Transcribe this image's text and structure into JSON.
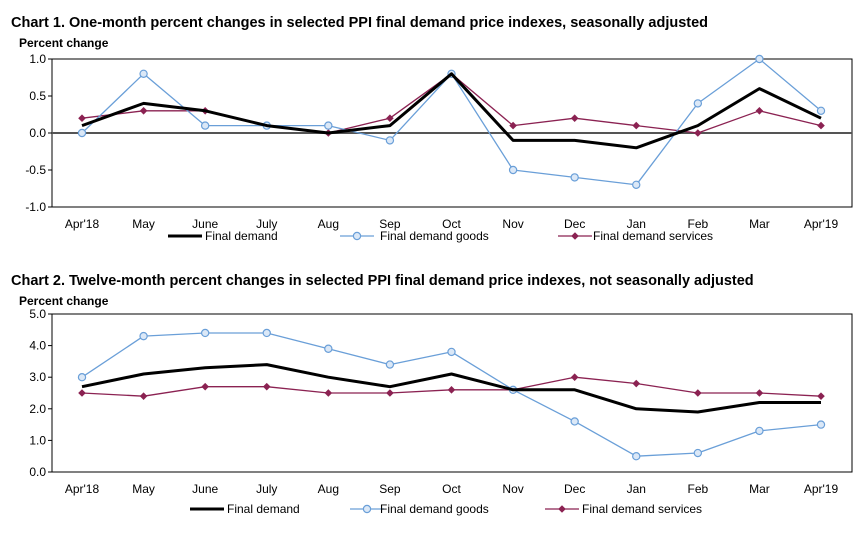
{
  "chart_data": [
    {
      "type": "line",
      "title": "Chart 1. One-month percent changes in selected PPI final demand price indexes, seasonally adjusted",
      "ylabel": "Percent change",
      "ylim": [
        -1.0,
        1.0
      ],
      "yticks": [
        "1.0",
        "0.5",
        "0.0",
        "-0.5",
        "-1.0"
      ],
      "ytick_values": [
        1.0,
        0.5,
        0.0,
        -0.5,
        -1.0
      ],
      "grid": false,
      "zero_line": true,
      "legend_position": "bottom",
      "categories": [
        "Apr'18",
        "May",
        "June",
        "July",
        "Aug",
        "Sep",
        "Oct",
        "Nov",
        "Dec",
        "Jan",
        "Feb",
        "Mar",
        "Apr'19"
      ],
      "series": [
        {
          "name": "Final demand",
          "color": "#000000",
          "marker": "none",
          "values": [
            0.1,
            0.4,
            0.3,
            0.1,
            0.0,
            0.1,
            0.8,
            -0.1,
            -0.1,
            -0.2,
            0.1,
            0.6,
            0.2
          ]
        },
        {
          "name": "Final demand goods",
          "color": "#6a9fd8",
          "marker": "circle",
          "values": [
            0.0,
            0.8,
            0.1,
            0.1,
            0.1,
            -0.1,
            0.8,
            -0.5,
            -0.6,
            -0.7,
            0.4,
            1.0,
            0.3
          ]
        },
        {
          "name": "Final demand services",
          "color": "#8b2252",
          "marker": "diamond",
          "values": [
            0.2,
            0.3,
            0.3,
            0.1,
            0.0,
            0.2,
            0.8,
            0.1,
            0.2,
            0.1,
            0.0,
            0.3,
            0.1
          ]
        }
      ]
    },
    {
      "type": "line",
      "title": "Chart 2. Twelve-month percent changes in selected PPI final demand price indexes, not seasonally adjusted",
      "ylabel": "Percent change",
      "ylim": [
        0.0,
        5.0
      ],
      "yticks": [
        "5.0",
        "4.0",
        "3.0",
        "2.0",
        "1.0",
        "0.0"
      ],
      "ytick_values": [
        5.0,
        4.0,
        3.0,
        2.0,
        1.0,
        0.0
      ],
      "grid": false,
      "zero_line": false,
      "legend_position": "bottom",
      "categories": [
        "Apr'18",
        "May",
        "June",
        "July",
        "Aug",
        "Sep",
        "Oct",
        "Nov",
        "Dec",
        "Jan",
        "Feb",
        "Mar",
        "Apr'19"
      ],
      "series": [
        {
          "name": "Final demand",
          "color": "#000000",
          "marker": "none",
          "values": [
            2.7,
            3.1,
            3.3,
            3.4,
            3.0,
            2.7,
            3.1,
            2.6,
            2.6,
            2.0,
            1.9,
            2.2,
            2.2
          ]
        },
        {
          "name": "Final demand goods",
          "color": "#6a9fd8",
          "marker": "circle",
          "values": [
            3.0,
            4.3,
            4.4,
            4.4,
            3.9,
            3.4,
            3.8,
            2.6,
            1.6,
            0.5,
            0.6,
            1.3,
            1.5
          ]
        },
        {
          "name": "Final demand services",
          "color": "#8b2252",
          "marker": "diamond",
          "values": [
            2.5,
            2.4,
            2.7,
            2.7,
            2.5,
            2.5,
            2.6,
            2.6,
            3.0,
            2.8,
            2.5,
            2.5,
            2.4
          ]
        }
      ]
    }
  ]
}
